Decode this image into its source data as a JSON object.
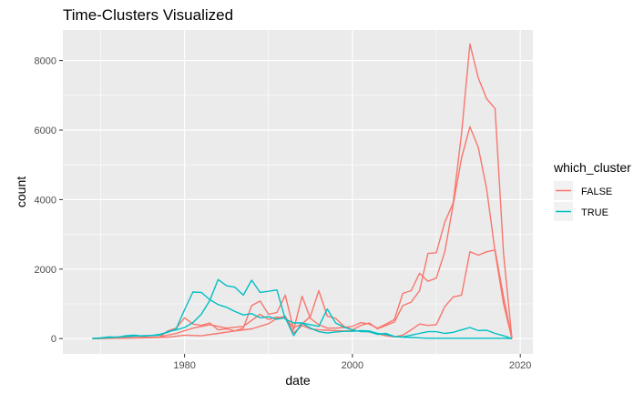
{
  "chart_data": {
    "type": "line",
    "title": "Time-Clusters Visualized",
    "xlabel": "date",
    "ylabel": "count",
    "xlim": [
      1965.5,
      2021.5
    ],
    "ylim": [
      -440,
      8880
    ],
    "x_ticks": [
      1980,
      2000,
      2020
    ],
    "y_ticks": [
      0,
      2000,
      4000,
      6000,
      8000
    ],
    "x_tick_labels": [
      "1980",
      "2000",
      "2020"
    ],
    "y_tick_labels": [
      "0",
      "2000",
      "4000",
      "6000",
      "8000"
    ],
    "grid": true,
    "legend": {
      "title": "which_cluster",
      "position": "right",
      "entries": [
        {
          "label": "FALSE",
          "color": "#F8766D"
        },
        {
          "label": "TRUE",
          "color": "#00BFC4"
        }
      ]
    },
    "series": [
      {
        "group": "FALSE",
        "color": "#F8766D",
        "x": [
          1969,
          1971,
          1973,
          1975,
          1977,
          1978,
          1979,
          1980,
          1981,
          1982,
          1983,
          1984,
          1985,
          1986,
          1987,
          1988,
          1989,
          1990,
          1991,
          1992,
          1993,
          1994,
          1995,
          1996,
          1997,
          1998,
          1999,
          2000,
          2001,
          2002,
          2003,
          2004,
          2005,
          2006,
          2007,
          2008,
          2009,
          2010,
          2011,
          2012,
          2013,
          2014,
          2015,
          2016,
          2017,
          2018,
          2019
        ],
        "y": [
          0,
          10,
          20,
          30,
          40,
          220,
          300,
          600,
          420,
          380,
          450,
          250,
          280,
          220,
          300,
          950,
          1080,
          700,
          750,
          1250,
          250,
          1220,
          580,
          400,
          300,
          300,
          320,
          350,
          460,
          420,
          300,
          420,
          550,
          1300,
          1380,
          1880,
          1650,
          1740,
          2500,
          3850,
          5200,
          6100,
          5500,
          4300,
          2500,
          1000,
          0
        ]
      },
      {
        "group": "FALSE",
        "color": "#F8766D",
        "x": [
          1969,
          1971,
          1973,
          1975,
          1977,
          1979,
          1981,
          1983,
          1985,
          1987,
          1989,
          1990,
          1991,
          1992,
          1993,
          1994,
          1995,
          1996,
          1997,
          1998,
          1999,
          2000,
          2001,
          2002,
          2003,
          2004,
          2005,
          2006,
          2007,
          2008,
          2009,
          2010,
          2011,
          2012,
          2013,
          2014,
          2015,
          2016,
          2017,
          2018,
          2019
        ],
        "y": [
          0,
          10,
          20,
          30,
          50,
          150,
          300,
          400,
          300,
          350,
          700,
          550,
          620,
          580,
          320,
          420,
          640,
          1380,
          650,
          580,
          350,
          250,
          380,
          450,
          280,
          380,
          480,
          950,
          1050,
          1380,
          2450,
          2470,
          3350,
          3900,
          5900,
          8480,
          7500,
          6900,
          6620,
          2450,
          0
        ]
      },
      {
        "group": "FALSE",
        "color": "#F8766D",
        "x": [
          1969,
          1972,
          1975,
          1978,
          1980,
          1982,
          1984,
          1986,
          1988,
          1990,
          1991,
          1992,
          1993,
          1994,
          1995,
          1996,
          1997,
          1998,
          1999,
          2000,
          2001,
          2002,
          2003,
          2004,
          2005,
          2006,
          2007,
          2008,
          2009,
          2010,
          2011,
          2012,
          2013,
          2014,
          2015,
          2016,
          2017,
          2018,
          2019
        ],
        "y": [
          0,
          10,
          20,
          40,
          100,
          80,
          150,
          220,
          280,
          430,
          580,
          650,
          160,
          380,
          280,
          250,
          240,
          230,
          220,
          230,
          220,
          190,
          140,
          80,
          50,
          100,
          250,
          420,
          380,
          400,
          920,
          1200,
          1250,
          2500,
          2400,
          2500,
          2550,
          1200,
          0
        ]
      },
      {
        "group": "TRUE",
        "color": "#00BFC4",
        "x": [
          1969,
          1970,
          1971,
          1972,
          1973,
          1974,
          1975,
          1976,
          1977,
          1978,
          1979,
          1980,
          1981,
          1982,
          1983,
          1984,
          1985,
          1986,
          1987,
          1988,
          1989,
          1990,
          1991,
          1992,
          1993,
          1994,
          1995,
          1996,
          1997,
          1998,
          1999,
          2000,
          2001,
          2002,
          2003,
          2004,
          2005,
          2006,
          2007,
          2008,
          2009,
          2010,
          2011,
          2012,
          2013,
          2014,
          2015,
          2016,
          2017,
          2018,
          2019
        ],
        "y": [
          0,
          20,
          50,
          40,
          80,
          100,
          70,
          90,
          120,
          180,
          280,
          830,
          1340,
          1330,
          1120,
          980,
          900,
          780,
          680,
          720,
          600,
          630,
          560,
          600,
          90,
          450,
          400,
          350,
          850,
          450,
          330,
          250,
          200,
          200,
          120,
          150,
          60,
          40,
          30,
          20,
          10,
          10,
          10,
          10,
          10,
          10,
          10,
          10,
          10,
          10,
          0
        ]
      },
      {
        "group": "TRUE",
        "color": "#00BFC4",
        "x": [
          1969,
          1971,
          1973,
          1975,
          1977,
          1978,
          1979,
          1980,
          1981,
          1982,
          1983,
          1984,
          1985,
          1986,
          1987,
          1988,
          1989,
          1990,
          1991,
          1992,
          1993,
          1994,
          1995,
          1996,
          1997,
          1998,
          1999,
          2000,
          2001,
          2002,
          2003,
          2004,
          2005,
          2006,
          2007,
          2008,
          2009,
          2010,
          2011,
          2012,
          2013,
          2014,
          2015,
          2016,
          2017,
          2018,
          2019
        ],
        "y": [
          0,
          30,
          60,
          80,
          100,
          200,
          250,
          320,
          460,
          700,
          1100,
          1700,
          1520,
          1480,
          1250,
          1680,
          1330,
          1360,
          1400,
          560,
          450,
          450,
          300,
          200,
          160,
          190,
          210,
          210,
          230,
          220,
          150,
          120,
          60,
          50,
          100,
          150,
          200,
          200,
          150,
          180,
          250,
          320,
          230,
          240,
          150,
          80,
          0
        ]
      }
    ]
  }
}
